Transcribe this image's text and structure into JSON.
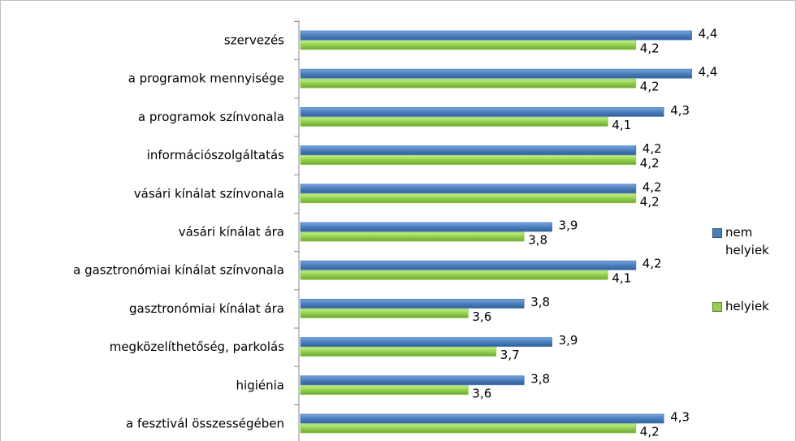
{
  "chart_data": {
    "type": "hbar",
    "categories": [
      "szervezés",
      "a programok mennyisége",
      "a programok színvonala",
      "információszolgáltatás",
      "vásári kínálat színvonala",
      "vásári kínálat ára",
      "a gasztronómiai kínálat színvonala",
      "gasztronómiai kínálat ára",
      "megközelíthetőség, parkolás",
      "higiénia",
      "a fesztivál összességében"
    ],
    "series": [
      {
        "name": "nem helyiek",
        "color": "#4a7ebb",
        "values": [
          4.4,
          4.4,
          4.3,
          4.2,
          4.2,
          3.9,
          4.2,
          3.8,
          3.9,
          3.8,
          4.3
        ],
        "value_labels": [
          "4,4",
          "4,4",
          "4,3",
          "4,2",
          "4,2",
          "3,9",
          "4,2",
          "3,8",
          "3,9",
          "3,8",
          "4,3"
        ]
      },
      {
        "name": "helyiek",
        "color": "#92cf4e",
        "values": [
          4.2,
          4.2,
          4.1,
          4.2,
          4.2,
          3.8,
          4.1,
          3.6,
          3.7,
          3.6,
          4.2
        ],
        "value_labels": [
          "4,2",
          "4,2",
          "4,1",
          "4,2",
          "4,2",
          "3,8",
          "4,1",
          "3,6",
          "3,7",
          "3,6",
          "4,2"
        ]
      }
    ],
    "xlim": [
      3,
      4.5
    ],
    "legend": "right"
  }
}
